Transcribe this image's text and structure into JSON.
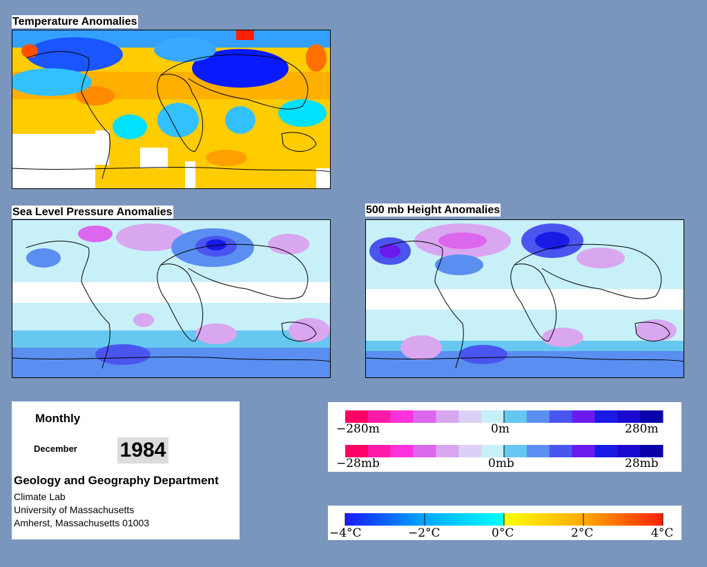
{
  "panels": {
    "temperature": {
      "title": "Temperature Anomalies"
    },
    "slp": {
      "title": "Sea Level Pressure Anomalies"
    },
    "height500": {
      "title": "500 mb Height Anomalies"
    }
  },
  "info": {
    "period": "Monthly",
    "month": "December",
    "year": "1984",
    "department": "Geology and Geography Department",
    "lab": "Climate Lab",
    "university": "University of Massachusetts",
    "address": "Amherst, Massachusetts 01003"
  },
  "legends": {
    "height": {
      "min": "−280m",
      "mid": "0m",
      "max": "280m"
    },
    "pressure": {
      "min": "−28mb",
      "mid": "0mb",
      "max": "28mb"
    },
    "temperature": {
      "t1": "−4°C",
      "t2": "−2°C",
      "t3": "0°C",
      "t4": "2°C",
      "t5": "4°C"
    }
  },
  "colors": {
    "background": "#7a96bd",
    "height_scale": [
      "#ff0066",
      "#ff1aa8",
      "#ff33dd",
      "#dd66ee",
      "#d9a6f0",
      "#dcd0f6",
      "#c8f0f8",
      "#66c8f0",
      "#5a8ef0",
      "#4a55f0",
      "#6a1aee",
      "#1a1ae6",
      "#1a0ad0",
      "#0a00aa"
    ],
    "temperature_scale": [
      "#1a1aff",
      "#0066ff",
      "#00b0ff",
      "#00e0ff",
      "#ffff00",
      "#ffd000",
      "#ff9900",
      "#ff6000",
      "#ff2000"
    ]
  },
  "icons": [
    "world-map-icon"
  ]
}
